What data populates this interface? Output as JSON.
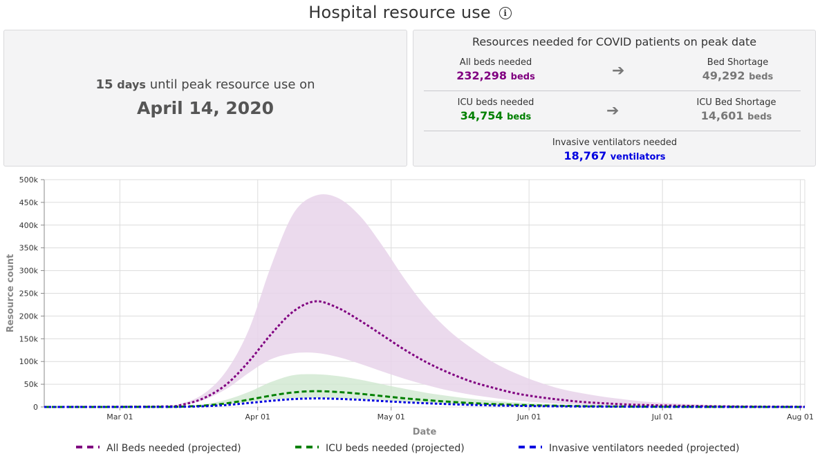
{
  "header": {
    "title": "Hospital resource use",
    "info_icon": "ⓘ"
  },
  "peak": {
    "days_number": "15",
    "days_unit": "days",
    "days_text": "until peak resource use on",
    "date": "April 14, 2020"
  },
  "resources": {
    "title": "Resources needed for COVID patients on peak date",
    "all_beds_label": "All beds needed",
    "all_beds_value": "232,298",
    "all_beds_unit": "beds",
    "bed_shortage_label": "Bed Shortage",
    "bed_shortage_value": "49,292",
    "bed_shortage_unit": "beds",
    "icu_beds_label": "ICU beds needed",
    "icu_beds_value": "34,754",
    "icu_beds_unit": "beds",
    "icu_shortage_label": "ICU Bed Shortage",
    "icu_shortage_value": "14,601",
    "icu_shortage_unit": "beds",
    "vent_label": "Invasive ventilators needed",
    "vent_value": "18,767",
    "vent_unit": "ventilators",
    "arrow": "➔"
  },
  "colors": {
    "purple": "#800080",
    "purple_band": "#e8d4ea",
    "green": "#008000",
    "green_band": "#cfe7cf",
    "blue": "#0000e0",
    "grid": "#dcdcdc",
    "axis_label": "#888888"
  },
  "chart_data": {
    "type": "line",
    "title": "",
    "xlabel": "Date",
    "ylabel": "Resource count",
    "x_domain": [
      "2020-02-13",
      "2020-08-02"
    ],
    "ylim": [
      0,
      500000
    ],
    "y_ticks": [
      0,
      50000,
      100000,
      150000,
      200000,
      250000,
      300000,
      350000,
      400000,
      450000,
      500000
    ],
    "y_tick_labels": [
      "0",
      "50k",
      "100k",
      "150k",
      "200k",
      "250k",
      "300k",
      "350k",
      "400k",
      "450k",
      "500k"
    ],
    "x_ticks": [
      "2020-03-01",
      "2020-04-01",
      "2020-05-01",
      "2020-06-01",
      "2020-07-01",
      "2020-08-01"
    ],
    "x_tick_labels": [
      "Mar 01",
      "Apr 01",
      "May 01",
      "Jun 01",
      "Jul 01",
      "Aug 01"
    ],
    "grid": true,
    "legend_position": "bottom",
    "series": [
      {
        "name": "All Beds needed (projected)",
        "color": "#800080",
        "style": "dotted",
        "dates": [
          "2020-02-13",
          "2020-03-10",
          "2020-03-15",
          "2020-03-20",
          "2020-03-25",
          "2020-03-30",
          "2020-04-04",
          "2020-04-09",
          "2020-04-14",
          "2020-04-19",
          "2020-04-24",
          "2020-04-29",
          "2020-05-04",
          "2020-05-09",
          "2020-05-14",
          "2020-05-19",
          "2020-05-24",
          "2020-05-29",
          "2020-06-03",
          "2020-06-08",
          "2020-06-13",
          "2020-06-18",
          "2020-06-23",
          "2020-06-28",
          "2020-07-03",
          "2020-07-13",
          "2020-07-23",
          "2020-08-02"
        ],
        "values": [
          0,
          1000,
          5000,
          20000,
          50000,
          100000,
          160000,
          210000,
          232298,
          218000,
          190000,
          158000,
          126000,
          98000,
          75000,
          56000,
          42000,
          30000,
          22000,
          16000,
          11000,
          8000,
          5500,
          4000,
          3000,
          1500,
          800,
          400
        ],
        "band_lower": [
          0,
          800,
          4000,
          16000,
          40000,
          75000,
          105000,
          118000,
          119000,
          110000,
          95000,
          78000,
          62000,
          48000,
          36000,
          27000,
          20000,
          14000,
          10000,
          7000,
          5000,
          3500,
          2500,
          1800,
          1200,
          600,
          300,
          150
        ],
        "band_upper": [
          0,
          1500,
          8000,
          30000,
          80000,
          170000,
          310000,
          425000,
          465000,
          460000,
          420000,
          355000,
          282000,
          218000,
          168000,
          130000,
          98000,
          74000,
          55000,
          40000,
          30000,
          22000,
          16000,
          11000,
          8000,
          4000,
          2000,
          1000
        ]
      },
      {
        "name": "ICU beds needed (projected)",
        "color": "#008000",
        "style": "dashed",
        "dates": [
          "2020-02-13",
          "2020-03-10",
          "2020-03-15",
          "2020-03-20",
          "2020-03-25",
          "2020-03-30",
          "2020-04-04",
          "2020-04-09",
          "2020-04-14",
          "2020-04-19",
          "2020-04-24",
          "2020-04-29",
          "2020-05-04",
          "2020-05-09",
          "2020-05-14",
          "2020-05-19",
          "2020-05-24",
          "2020-05-29",
          "2020-06-03",
          "2020-06-08",
          "2020-06-13",
          "2020-06-18",
          "2020-06-23",
          "2020-06-28",
          "2020-07-03",
          "2020-07-13",
          "2020-07-23",
          "2020-08-02"
        ],
        "values": [
          0,
          200,
          800,
          3000,
          8000,
          16000,
          25000,
          32000,
          34754,
          33000,
          29000,
          24000,
          19000,
          15000,
          11500,
          8500,
          6300,
          4600,
          3400,
          2500,
          1800,
          1300,
          900,
          650,
          450,
          200,
          100,
          50
        ],
        "band_lower": [
          0,
          150,
          600,
          2200,
          6000,
          11000,
          16000,
          19000,
          20000,
          19000,
          17000,
          14000,
          11000,
          8500,
          6500,
          4800,
          3500,
          2500,
          1800,
          1300,
          900,
          650,
          450,
          320,
          220,
          100,
          50,
          25
        ],
        "band_upper": [
          0,
          300,
          1500,
          6000,
          16000,
          33000,
          55000,
          70000,
          72000,
          68000,
          60000,
          50000,
          40000,
          31000,
          24000,
          18000,
          13500,
          10000,
          7400,
          5400,
          4000,
          2900,
          2100,
          1500,
          1100,
          500,
          250,
          120
        ]
      },
      {
        "name": "Invasive ventilators needed (projected)",
        "color": "#0000e0",
        "style": "dotted",
        "dates": [
          "2020-02-13",
          "2020-03-10",
          "2020-03-15",
          "2020-03-20",
          "2020-03-25",
          "2020-03-30",
          "2020-04-04",
          "2020-04-09",
          "2020-04-14",
          "2020-04-19",
          "2020-04-24",
          "2020-04-29",
          "2020-05-04",
          "2020-05-09",
          "2020-05-14",
          "2020-05-19",
          "2020-05-24",
          "2020-05-29",
          "2020-06-03",
          "2020-06-08",
          "2020-06-13",
          "2020-06-18",
          "2020-06-23",
          "2020-06-28",
          "2020-07-03",
          "2020-07-13",
          "2020-07-23",
          "2020-08-02"
        ],
        "values": [
          0,
          100,
          400,
          1600,
          4300,
          8700,
          13500,
          17300,
          18767,
          17800,
          15700,
          13000,
          10300,
          8100,
          6200,
          4600,
          3400,
          2500,
          1800,
          1350,
          970,
          700,
          490,
          350,
          240,
          110,
          55,
          25
        ]
      }
    ]
  }
}
